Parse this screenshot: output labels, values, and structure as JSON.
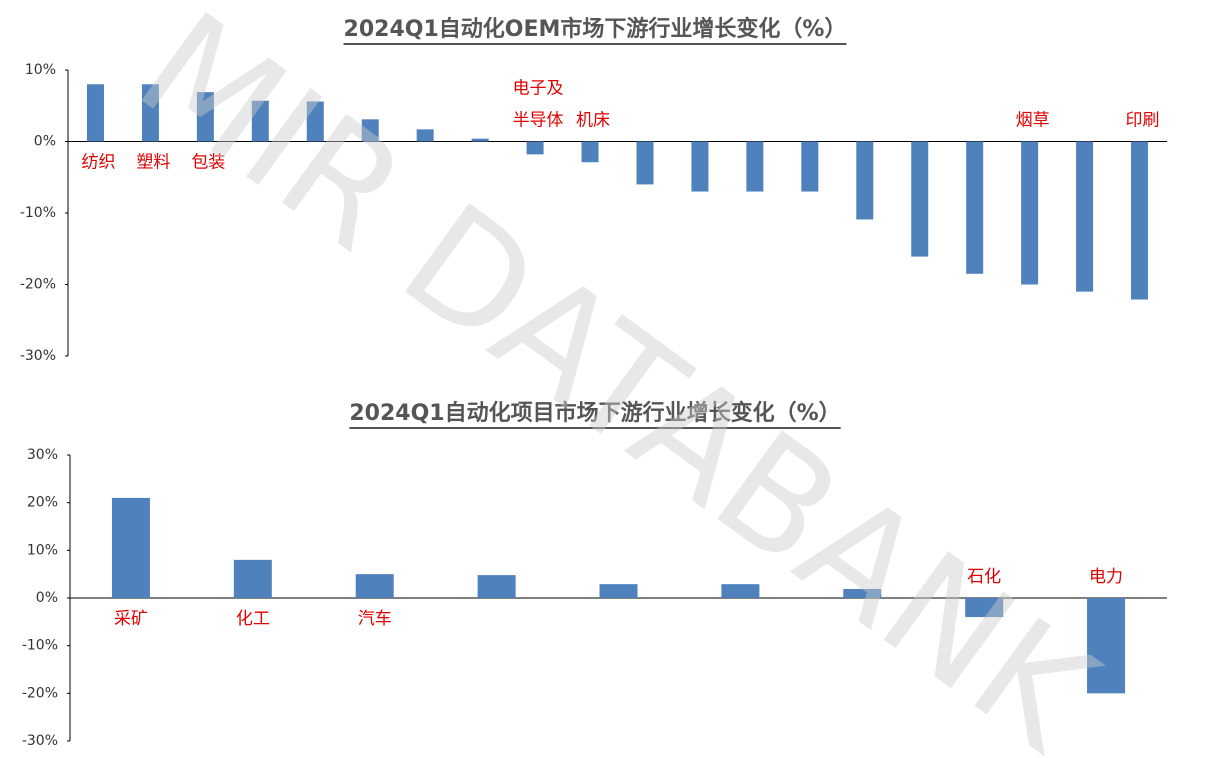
{
  "chart_data": [
    {
      "type": "bar",
      "title": "2024Q1自动化OEM市场下游行业增长变化（%）",
      "color": "#4f81bd",
      "categories": [
        "纺织",
        "塑料",
        "包装",
        null,
        null,
        null,
        null,
        null,
        "电子及\n半导体",
        "机床",
        null,
        null,
        null,
        null,
        null,
        null,
        null,
        "烟草",
        null,
        "印刷"
      ],
      "values": [
        8.0,
        8.0,
        6.9,
        5.7,
        5.6,
        3.1,
        1.7,
        0.4,
        -1.8,
        -2.9,
        -6.0,
        -7.0,
        -7.0,
        -7.0,
        -10.9,
        -16.1,
        -18.5,
        -20.0,
        -21.0,
        -22.1
      ],
      "ylim": [
        -30,
        10
      ],
      "yticks": [
        {
          "value": -30,
          "label": "-30%"
        },
        {
          "value": -20,
          "label": "-20%"
        },
        {
          "value": -10,
          "label": "-10%"
        },
        {
          "value": 0,
          "label": "0%"
        },
        {
          "value": 10,
          "label": "10%"
        }
      ]
    },
    {
      "type": "bar",
      "title": "2024Q1自动化项目市场下游行业增长变化（%）",
      "color": "#4f81bd",
      "categories": [
        "采矿",
        "化工",
        "汽车",
        null,
        null,
        null,
        null,
        "石化",
        "电力"
      ],
      "values": [
        21.0,
        8.0,
        5.0,
        4.8,
        2.9,
        2.9,
        1.9,
        -4.0,
        -20.0
      ],
      "ylim": [
        -30,
        30
      ],
      "yticks": [
        {
          "value": -30,
          "label": "-30%"
        },
        {
          "value": -20,
          "label": "-20%"
        },
        {
          "value": -10,
          "label": "-10%"
        },
        {
          "value": 0,
          "label": "0%"
        },
        {
          "value": 10,
          "label": "10%"
        },
        {
          "value": 20,
          "label": "20%"
        },
        {
          "value": 30,
          "label": "30%"
        }
      ]
    }
  ],
  "watermark": "MIR DATABANK"
}
